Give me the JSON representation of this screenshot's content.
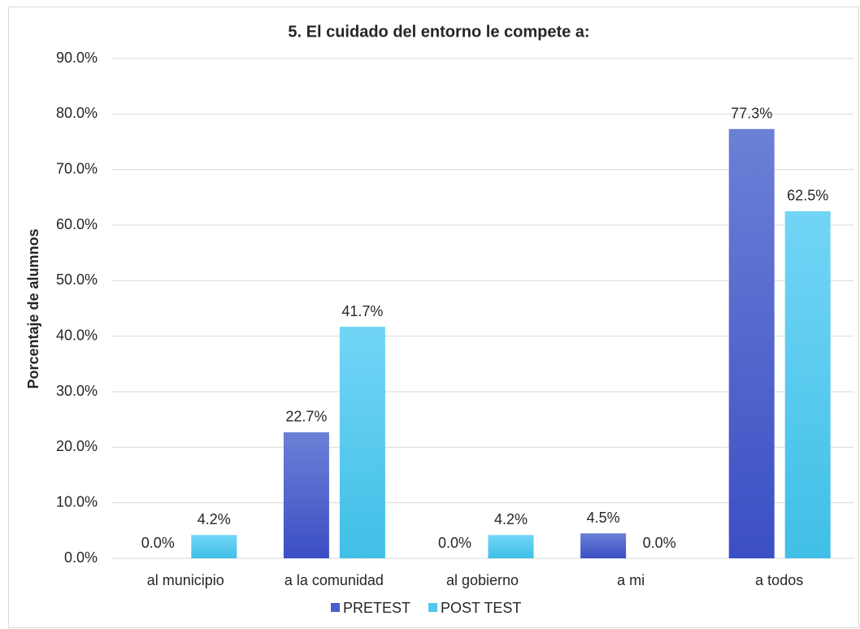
{
  "chart_data": {
    "type": "bar",
    "title": "5.  El cuidado del entorno le compete a:",
    "y_label": "Porcentaje de alumnos",
    "categories": [
      "al municipio",
      "a la comunidad",
      "al gobierno",
      "a mi",
      "a todos"
    ],
    "series": [
      {
        "name": "PRETEST",
        "color": "#4a5fcc",
        "values": [
          0.0,
          22.7,
          0.0,
          4.5,
          77.3
        ],
        "value_labels": [
          "0.0%",
          "22.7%",
          "0.0%",
          "4.5%",
          "77.3%"
        ]
      },
      {
        "name": "POST TEST",
        "color": "#52c8ef",
        "values": [
          4.2,
          41.7,
          4.2,
          0.0,
          62.5
        ],
        "value_labels": [
          "4.2%",
          "41.7%",
          "4.2%",
          "0.0%",
          "62.5%"
        ]
      }
    ],
    "ylim": [
      0,
      90
    ],
    "yticks": [
      {
        "value": 0,
        "label": "0.0%"
      },
      {
        "value": 10,
        "label": "10.0%"
      },
      {
        "value": 20,
        "label": "20.0%"
      },
      {
        "value": 30,
        "label": "30.0%"
      },
      {
        "value": 40,
        "label": "40.0%"
      },
      {
        "value": 50,
        "label": "50.0%"
      },
      {
        "value": 60,
        "label": "60.0%"
      },
      {
        "value": 70,
        "label": "70.0%"
      },
      {
        "value": 80,
        "label": "80.0%"
      },
      {
        "value": 90,
        "label": "90.0%"
      }
    ],
    "grid": true,
    "legend": "bottom"
  }
}
